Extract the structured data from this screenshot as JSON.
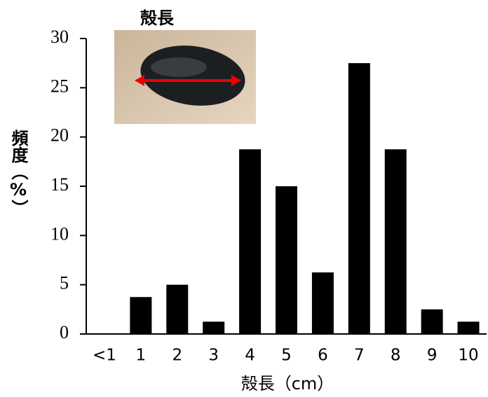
{
  "chart_data": {
    "type": "bar",
    "annotation": "殻長",
    "xlabel": "殻長（cm）",
    "ylabel": "頻度（%）",
    "categories": [
      "<1",
      "1",
      "2",
      "3",
      "4",
      "5",
      "6",
      "7",
      "8",
      "9",
      "10"
    ],
    "values": [
      0,
      3.75,
      5,
      1.25,
      18.75,
      15,
      6.25,
      27.5,
      18.75,
      2.5,
      1.25
    ],
    "color": "#000000",
    "ylim": [
      0,
      30
    ],
    "yticks": [
      0,
      5,
      10,
      15,
      20,
      25,
      30
    ],
    "grid": false
  }
}
